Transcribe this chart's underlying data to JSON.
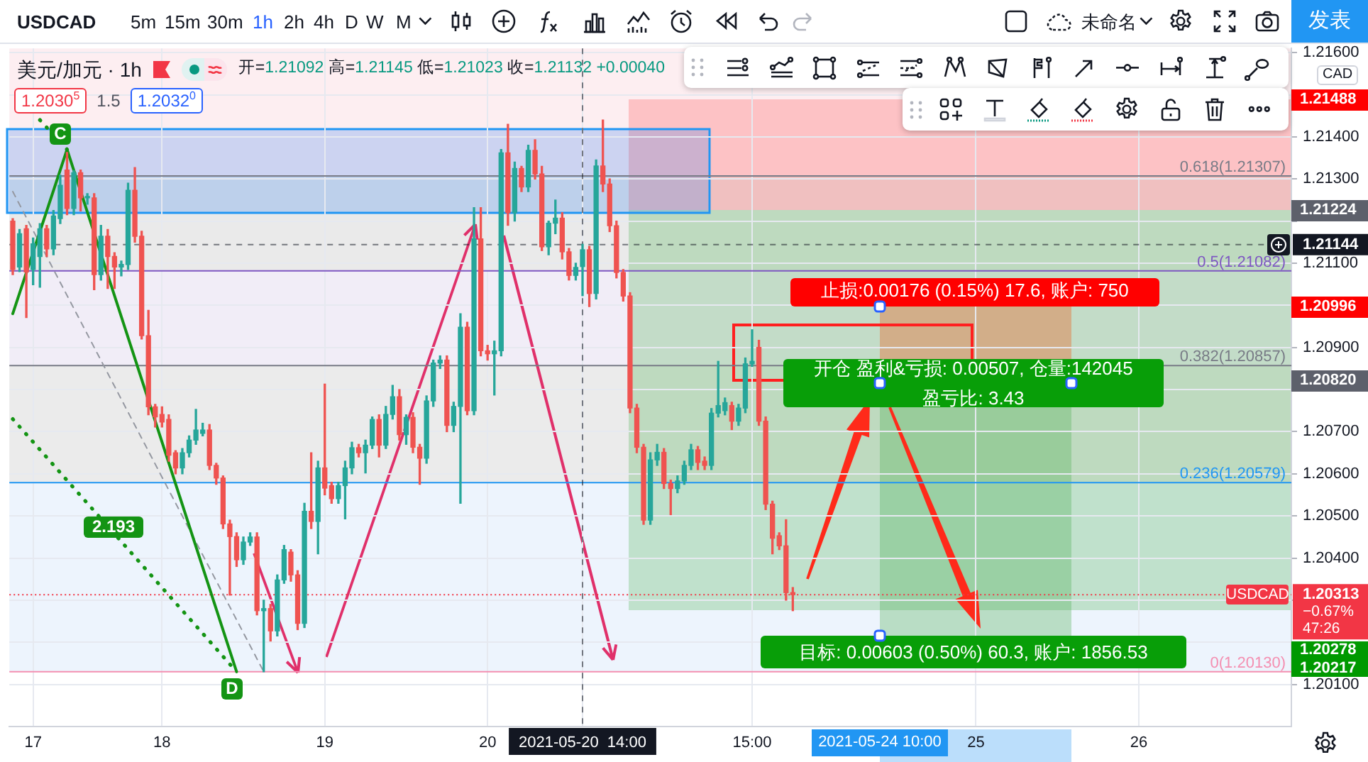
{
  "chart_data": {
    "type": "candlestick",
    "categories": [
      null,
      null,
      null,
      "17",
      null,
      null,
      null,
      null,
      null,
      null,
      null,
      null,
      null,
      null,
      null,
      null,
      null,
      null,
      null,
      null,
      null,
      null,
      "18",
      null,
      null,
      null,
      null,
      null,
      null,
      null,
      null,
      null,
      null,
      null,
      null,
      null,
      null,
      null,
      null,
      null,
      null,
      null,
      null,
      null,
      null,
      null,
      "19",
      null,
      null,
      null,
      null,
      null,
      null,
      null,
      null,
      null,
      null,
      null,
      null,
      null,
      null,
      null,
      null,
      null,
      null,
      null,
      null,
      null,
      null,
      null,
      "20",
      null,
      null,
      null,
      null,
      null,
      null,
      null,
      null,
      null,
      null,
      null,
      null,
      null,
      "2021-05-20  14:00",
      null,
      null,
      null,
      null,
      null,
      null,
      null,
      null,
      null,
      null,
      null,
      null,
      null,
      null,
      null,
      null,
      null,
      null,
      null,
      null,
      null,
      null,
      null,
      null,
      "15:00",
      null,
      null,
      null,
      null,
      null,
      null,
      null,
      null,
      null,
      null,
      null,
      null,
      null,
      null,
      null,
      null,
      null,
      null,
      null,
      null,
      null,
      null,
      null,
      null,
      null,
      null,
      null,
      null,
      null,
      null,
      null,
      null,
      "25",
      null,
      null,
      null,
      null,
      null,
      null,
      null,
      null,
      null,
      null,
      null,
      null,
      null,
      null,
      null,
      null,
      null,
      null,
      null,
      null,
      null,
      null,
      null,
      "26",
      null,
      null,
      null,
      null,
      null,
      null,
      null,
      null,
      null,
      null,
      null,
      null,
      null,
      null,
      null,
      null,
      null,
      null,
      null,
      null,
      null,
      null
    ],
    "ohlc": [
      [
        1.212,
        1.21206,
        1.21073,
        1.21085
      ],
      [
        1.21091,
        1.2118,
        1.2108,
        1.2117
      ],
      [
        1.21182,
        1.2119,
        1.20971,
        1.21079
      ],
      [
        1.21085,
        1.2116,
        1.21049,
        1.21146
      ],
      [
        1.21116,
        1.21194,
        1.21043,
        1.21182
      ],
      [
        1.21182,
        1.2119,
        1.21116,
        1.21134
      ],
      [
        1.21134,
        1.21225,
        1.2112,
        1.21212
      ],
      [
        1.21206,
        1.21309,
        1.21194,
        1.21285
      ],
      [
        1.21321,
        1.21363,
        1.21215,
        1.2123
      ],
      [
        1.2123,
        1.2132,
        1.21215,
        1.21315
      ],
      [
        1.21315,
        1.21321,
        1.21224,
        1.21255
      ],
      [
        1.21255,
        1.21265,
        1.2124,
        1.21258
      ],
      [
        1.21255,
        1.21265,
        1.21037,
        1.21073
      ],
      [
        1.21073,
        1.2119,
        1.2106,
        1.21164
      ],
      [
        1.21164,
        1.2118,
        1.2104,
        1.21116
      ],
      [
        1.21116,
        1.21125,
        1.2104,
        1.21091
      ],
      [
        1.21091,
        1.21105,
        1.2107,
        1.21097
      ],
      [
        1.21097,
        1.2129,
        1.21085,
        1.21273
      ],
      [
        1.21273,
        1.21327,
        1.2115,
        1.21164
      ],
      [
        1.21164,
        1.21176,
        1.2092,
        1.20928
      ],
      [
        1.20928,
        1.20988,
        1.2074,
        1.20759
      ],
      [
        1.20759,
        1.20765,
        1.20711,
        1.20735
      ],
      [
        1.20741,
        1.20759,
        1.20711,
        1.20723
      ],
      [
        1.20729,
        1.2074,
        1.2063,
        1.20644
      ],
      [
        1.2065,
        1.20655,
        1.206,
        1.20614
      ],
      [
        1.20614,
        1.2066,
        1.206,
        1.2065
      ],
      [
        1.2065,
        1.2069,
        1.2064,
        1.2068
      ],
      [
        1.2068,
        1.20753,
        1.2067,
        1.20704
      ],
      [
        1.20696,
        1.2072,
        1.2069,
        1.20704
      ],
      [
        1.20704,
        1.20717,
        1.2061,
        1.2062
      ],
      [
        1.2062,
        1.20625,
        1.20575,
        1.2059
      ],
      [
        1.2059,
        1.20595,
        1.2047,
        1.20481
      ],
      [
        1.20481,
        1.2049,
        1.20312,
        1.20451
      ],
      [
        1.20451,
        1.2046,
        1.2038,
        1.20396
      ],
      [
        1.20396,
        1.2045,
        1.20385,
        1.20438
      ],
      [
        1.20438,
        1.2046,
        1.2043,
        1.2045
      ],
      [
        1.2045,
        1.2046,
        1.20265,
        1.20275
      ],
      [
        1.20275,
        1.203,
        1.2013,
        1.2028
      ],
      [
        1.2028,
        1.2029,
        1.20203,
        1.20227
      ],
      [
        1.20227,
        1.2036,
        1.20215,
        1.20348
      ],
      [
        1.20348,
        1.2043,
        1.2034,
        1.2042
      ],
      [
        1.20414,
        1.2042,
        1.20345,
        1.2036
      ],
      [
        1.2036,
        1.2037,
        1.2023,
        1.20245
      ],
      [
        1.20245,
        1.2053,
        1.20235,
        1.20511
      ],
      [
        1.20511,
        1.2065,
        1.2047,
        1.20487
      ],
      [
        1.20487,
        1.2063,
        1.2041,
        1.20614
      ],
      [
        1.20614,
        1.20813,
        1.2055,
        1.20566
      ],
      [
        1.20572,
        1.2058,
        1.2053,
        1.20541
      ],
      [
        1.20541,
        1.2058,
        1.2053,
        1.20572
      ],
      [
        1.20572,
        1.2063,
        1.20493,
        1.20614
      ],
      [
        1.20614,
        1.20675,
        1.206,
        1.20662
      ],
      [
        1.20662,
        1.2067,
        1.2064,
        1.2065
      ],
      [
        1.2065,
        1.2068,
        1.20602,
        1.20668
      ],
      [
        1.20668,
        1.20735,
        1.2066,
        1.20729
      ],
      [
        1.20729,
        1.2074,
        1.2064,
        1.20668
      ],
      [
        1.20668,
        1.2076,
        1.2066,
        1.20741
      ],
      [
        1.20741,
        1.2081,
        1.2073,
        1.20783
      ],
      [
        1.20783,
        1.208,
        1.2068,
        1.20693
      ],
      [
        1.20693,
        1.2074,
        1.2067,
        1.20734
      ],
      [
        1.20734,
        1.20745,
        1.2065,
        1.20663
      ],
      [
        1.20663,
        1.2067,
        1.20575,
        1.20637
      ],
      [
        1.20637,
        1.20785,
        1.20625,
        1.20773
      ],
      [
        1.20773,
        1.2087,
        1.2076,
        1.20863
      ],
      [
        1.20863,
        1.2088,
        1.2085,
        1.2087
      ],
      [
        1.2087,
        1.2088,
        1.207,
        1.20715
      ],
      [
        1.20715,
        1.2077,
        1.207,
        1.2076
      ],
      [
        1.2076,
        1.2098,
        1.2053,
        1.20948
      ],
      [
        1.20948,
        1.2096,
        1.2074,
        1.2075
      ],
      [
        1.2075,
        1.21232,
        1.2074,
        1.21158
      ],
      [
        1.21158,
        1.21232,
        1.2088,
        1.20892
      ],
      [
        1.20892,
        1.20905,
        1.2087,
        1.20885
      ],
      [
        1.20885,
        1.20915,
        1.20787,
        1.20892
      ],
      [
        1.20892,
        1.2137,
        1.2088,
        1.21362
      ],
      [
        1.21362,
        1.2143,
        1.2119,
        1.2122
      ],
      [
        1.2122,
        1.2134,
        1.212,
        1.21325
      ],
      [
        1.21325,
        1.2133,
        1.2127,
        1.21281
      ],
      [
        1.21281,
        1.2138,
        1.2127,
        1.21368
      ],
      [
        1.21368,
        1.21393,
        1.213,
        1.21312
      ],
      [
        1.21312,
        1.2133,
        1.2113,
        1.21139
      ],
      [
        1.21139,
        1.212,
        1.2112,
        1.21195
      ],
      [
        1.21195,
        1.2125,
        1.2117,
        1.21207
      ],
      [
        1.21207,
        1.2122,
        1.2111,
        1.21127
      ],
      [
        1.21127,
        1.21135,
        1.2106,
        1.21071
      ],
      [
        1.21071,
        1.211,
        1.2106,
        1.2109
      ],
      [
        1.21092,
        1.21145,
        1.21023,
        1.21132
      ],
      [
        1.21132,
        1.2114,
        1.20997,
        1.21028
      ],
      [
        1.21028,
        1.21345,
        1.21015,
        1.21331
      ],
      [
        1.21331,
        1.2144,
        1.2127,
        1.21288
      ],
      [
        1.21288,
        1.213,
        1.21175,
        1.21189
      ],
      [
        1.21189,
        1.212,
        1.21065,
        1.21078
      ],
      [
        1.21078,
        1.21085,
        1.2101,
        1.21022
      ],
      [
        1.21022,
        1.2103,
        1.20745,
        1.20756
      ],
      [
        1.20756,
        1.20765,
        1.2065,
        1.20663
      ],
      [
        1.20663,
        1.2067,
        1.2048,
        1.2049
      ],
      [
        1.2049,
        1.2065,
        1.2048,
        1.20633
      ],
      [
        1.20633,
        1.2067,
        1.2062,
        1.20651
      ],
      [
        1.20651,
        1.2066,
        1.20565,
        1.20577
      ],
      [
        1.20577,
        1.20585,
        1.20503,
        1.20565
      ],
      [
        1.20565,
        1.20595,
        1.20555,
        1.20583
      ],
      [
        1.20583,
        1.2063,
        1.20575,
        1.2062
      ],
      [
        1.2062,
        1.2067,
        1.2061,
        1.20657
      ],
      [
        1.20657,
        1.20665,
        1.2061,
        1.20627
      ],
      [
        1.2063,
        1.2064,
        1.2061,
        1.2062
      ],
      [
        1.2062,
        1.20755,
        1.2061,
        1.20744
      ],
      [
        1.20744,
        1.20867,
        1.20735,
        1.20762
      ],
      [
        1.2075,
        1.2078,
        1.2074,
        1.20769
      ],
      [
        1.20762,
        1.2077,
        1.20705,
        1.20725
      ],
      [
        1.20725,
        1.20765,
        1.20715,
        1.20756
      ],
      [
        1.20756,
        1.20875,
        1.20745,
        1.20861
      ],
      [
        1.20861,
        1.20942,
        1.20855,
        1.20867
      ],
      [
        1.209,
        1.20917,
        1.20715,
        1.20725
      ],
      [
        1.20725,
        1.20735,
        1.20515,
        1.20528
      ],
      [
        1.20528,
        1.20535,
        1.2041,
        1.20447
      ],
      [
        1.20453,
        1.2046,
        1.2042,
        1.20429
      ],
      [
        1.20429,
        1.20491,
        1.203,
        1.20318
      ],
      [
        1.20318,
        1.2033,
        1.20275,
        1.20313
      ],
      null,
      null,
      null,
      null,
      null,
      null,
      null,
      null,
      null,
      null,
      null,
      null,
      null,
      null,
      null,
      null,
      null,
      null,
      null,
      null,
      null,
      null,
      null,
      null,
      null,
      null,
      null,
      null,
      null,
      null,
      null,
      null,
      null,
      null,
      null,
      null,
      null,
      null,
      null,
      null,
      null,
      null,
      null,
      null,
      null,
      null,
      null,
      null,
      null,
      null,
      null,
      null,
      null,
      null,
      null,
      null,
      null,
      null,
      null,
      null,
      null,
      null,
      null,
      null,
      null,
      null,
      null,
      null,
      null,
      null,
      null,
      null,
      null
    ],
    "ylim": [
      1.2,
      1.2161
    ],
    "yticks": [
      {
        "value": 1.201,
        "label": "1.20100"
      },
      {
        "value": 1.202,
        "label": null
      },
      {
        "value": 1.203,
        "label": null
      },
      {
        "value": 1.204,
        "label": "1.20400"
      },
      {
        "value": 1.205,
        "label": "1.20500"
      },
      {
        "value": 1.206,
        "label": "1.20600"
      },
      {
        "value": 1.207,
        "label": "1.20700"
      },
      {
        "value": 1.208,
        "label": null
      },
      {
        "value": 1.209,
        "label": "1.20900"
      },
      {
        "value": 1.21,
        "label": null
      },
      {
        "value": 1.211,
        "label": "1.21100"
      },
      {
        "value": 1.212,
        "label": null
      },
      {
        "value": 1.213,
        "label": "1.21300"
      },
      {
        "value": 1.214,
        "label": "1.21400"
      },
      {
        "value": 1.215,
        "label": null
      },
      {
        "value": 1.216,
        "label": "1.21600"
      }
    ],
    "grid": true,
    "series": [
      {
        "type": "line",
        "color": "#149414",
        "line_style": "solid",
        "values": [
          1.2098,
          null,
          null,
          null,
          null,
          null,
          null,
          null,
          1.2137,
          null,
          null,
          null,
          null,
          null,
          null,
          null,
          null,
          null,
          null,
          null,
          null,
          null,
          null,
          null,
          null,
          null,
          null,
          null,
          null,
          null,
          null,
          null,
          null,
          1.2013,
          null,
          null,
          null,
          null,
          null,
          null,
          null,
          null,
          null,
          null,
          null,
          null,
          null,
          null,
          null,
          null,
          null,
          null,
          null,
          null,
          null,
          null,
          null,
          null,
          null,
          null,
          null,
          null,
          null,
          null,
          null,
          null,
          null,
          null,
          null,
          null,
          null,
          null,
          null,
          null,
          null,
          null,
          null,
          null,
          null,
          null,
          null,
          null,
          null,
          null,
          null,
          null,
          null,
          null,
          null,
          null,
          null,
          null,
          null,
          null,
          null,
          null,
          null,
          null,
          null,
          null,
          null,
          null,
          null,
          null,
          null,
          null,
          null,
          null,
          null,
          null,
          null,
          null,
          null,
          null,
          null,
          null,
          null,
          null,
          null,
          null,
          null,
          null,
          null,
          null,
          null,
          null,
          null,
          null,
          null,
          null,
          null,
          null,
          null,
          null,
          null,
          null,
          null,
          null,
          null,
          null,
          null,
          null,
          null,
          null,
          null,
          null,
          null,
          null,
          null,
          null,
          null,
          null,
          null,
          null,
          null,
          null,
          null,
          null,
          null,
          null,
          null,
          null,
          null,
          null,
          null,
          null,
          null,
          null,
          null,
          null,
          null,
          null,
          null,
          null,
          null,
          null,
          null,
          null,
          null,
          null,
          null,
          null,
          null,
          null,
          null,
          null,
          null,
          null,
          null
        ]
      },
      {
        "type": "line",
        "color": "#149414",
        "line_style": "dotted",
        "values": [
          null,
          null,
          null,
          null,
          1.2144,
          null,
          null,
          null,
          1.2137,
          null,
          null,
          null,
          null,
          null,
          null,
          null,
          null,
          null,
          null,
          null,
          null,
          null,
          null,
          null,
          null,
          null,
          null,
          null,
          null,
          null,
          null,
          null,
          null,
          null,
          null,
          null,
          null,
          null,
          null,
          null,
          null,
          null,
          null,
          null,
          null,
          null,
          null,
          null,
          null,
          null,
          null,
          null,
          null,
          null,
          null,
          null,
          null,
          null,
          null,
          null,
          null,
          null,
          null,
          null,
          null,
          null,
          null,
          null,
          null,
          null,
          null,
          null,
          null,
          null,
          null,
          null,
          null,
          null,
          null,
          null,
          null,
          null,
          null,
          null,
          null,
          null,
          null,
          null,
          null,
          null,
          null,
          null,
          null,
          null,
          null,
          null,
          null,
          null,
          null,
          null,
          null,
          null,
          null,
          null,
          null,
          null,
          null,
          null,
          null,
          null,
          null,
          null,
          null,
          null,
          null,
          null,
          null,
          null,
          null,
          null,
          null,
          null,
          null,
          null,
          null,
          null,
          null,
          null,
          null,
          null,
          null,
          null,
          null,
          null,
          null,
          null,
          null,
          null,
          null,
          null,
          null,
          null,
          null,
          null,
          null,
          null,
          null,
          null,
          null,
          null,
          null,
          null,
          null,
          null,
          null,
          null,
          null,
          null,
          null,
          null,
          null,
          null,
          null,
          null,
          null,
          null,
          null,
          null,
          null,
          null,
          null,
          null,
          null,
          null,
          null,
          null,
          null,
          null,
          null,
          null,
          null,
          null,
          null,
          null,
          null,
          null,
          null,
          null,
          null
        ]
      },
      {
        "type": "line",
        "color": "#149414",
        "line_style": "dotted",
        "values": [
          1.2073,
          null,
          null,
          null,
          null,
          null,
          null,
          null,
          null,
          null,
          null,
          null,
          null,
          null,
          null,
          null,
          null,
          null,
          null,
          null,
          null,
          null,
          null,
          null,
          null,
          null,
          null,
          null,
          null,
          null,
          null,
          null,
          null,
          1.2013,
          null,
          null,
          null,
          null,
          null,
          null,
          null,
          null,
          null,
          null,
          null,
          null,
          null,
          null,
          null,
          null,
          null,
          null,
          null,
          null,
          null,
          null,
          null,
          null,
          null,
          null,
          null,
          null,
          null,
          null,
          null,
          null,
          null,
          null,
          null,
          null,
          null,
          null,
          null,
          null,
          null,
          null,
          null,
          null,
          null,
          null,
          null,
          null,
          null,
          null,
          null,
          null,
          null,
          null,
          null,
          null,
          null,
          null,
          null,
          null,
          null,
          null,
          null,
          null,
          null,
          null,
          null,
          null,
          null,
          null,
          null,
          null,
          null,
          null,
          null,
          null,
          null,
          null,
          null,
          null,
          null,
          null,
          null,
          null,
          null,
          null,
          null,
          null,
          null,
          null,
          null,
          null,
          null,
          null,
          null,
          null,
          null,
          null,
          null,
          null,
          null,
          null,
          null,
          null,
          null,
          null,
          null,
          null,
          null,
          null,
          null,
          null,
          null,
          null,
          null,
          null,
          null,
          null,
          null,
          null,
          null,
          null,
          null,
          null,
          null,
          null,
          null,
          null,
          null,
          null,
          null,
          null,
          null,
          null,
          null,
          null,
          null,
          null,
          null,
          null,
          null,
          null,
          null,
          null,
          null,
          null,
          null,
          null,
          null,
          null,
          null,
          null,
          null,
          null,
          null
        ]
      },
      {
        "type": "line",
        "color": "#9598a1",
        "line_style": "dashed",
        "values": [
          1.2127,
          null,
          null,
          null,
          null,
          null,
          null,
          null,
          null,
          null,
          null,
          null,
          null,
          null,
          null,
          null,
          null,
          null,
          null,
          null,
          null,
          null,
          null,
          null,
          null,
          null,
          null,
          null,
          null,
          null,
          null,
          null,
          null,
          null,
          null,
          null,
          null,
          1.2013,
          null,
          null,
          null,
          null,
          null,
          null,
          null,
          null,
          null,
          null,
          null,
          null,
          null,
          null,
          null,
          null,
          null,
          null,
          null,
          null,
          null,
          null,
          null,
          null,
          null,
          null,
          null,
          null,
          null,
          null,
          null,
          null,
          null,
          null,
          null,
          null,
          null,
          null,
          null,
          null,
          null,
          null,
          null,
          null,
          null,
          null,
          null,
          null,
          null,
          null,
          null,
          null,
          null,
          null,
          null,
          null,
          null,
          null,
          null,
          null,
          null,
          null,
          null,
          null,
          null,
          null,
          null,
          null,
          null,
          null,
          null,
          null,
          null,
          null,
          null,
          null,
          null,
          null,
          null,
          null,
          null,
          null,
          null,
          null,
          null,
          null,
          null,
          null,
          null,
          null,
          null,
          null,
          null,
          null,
          null,
          null,
          null,
          null,
          null,
          null,
          null,
          null,
          null,
          null,
          null,
          null,
          null,
          null,
          null,
          null,
          null,
          null,
          null,
          null,
          null,
          null,
          null,
          null,
          null,
          null,
          null,
          null,
          null,
          null,
          null,
          null,
          null,
          null,
          null,
          null,
          null,
          null,
          null,
          null,
          null,
          null,
          null,
          null,
          null,
          null,
          null,
          null,
          null,
          null,
          null,
          null,
          null,
          null,
          null,
          null,
          null
        ]
      }
    ],
    "bands": [
      {
        "axis": "y",
        "from": 1.2013,
        "to": 1.20579,
        "color": "#edf4fd"
      },
      {
        "axis": "y",
        "from": 1.20579,
        "to": 1.20857,
        "color": "#ebebeb"
      },
      {
        "axis": "y",
        "from": 1.20857,
        "to": 1.21082,
        "color": "#f1edf7"
      },
      {
        "axis": "y",
        "from": 1.21082,
        "to": 1.21307,
        "color": "#eaeaea"
      },
      {
        "axis": "y",
        "from": 1.21307,
        "to": 1.2161,
        "color": "#fdeef1"
      }
    ],
    "ref_lines": [
      {
        "axis": "y",
        "value": 1.21307,
        "label": "0.618(1.21307)",
        "color": "#787b86"
      },
      {
        "axis": "y",
        "value": 1.21082,
        "label": "0.5(1.21082)",
        "color": "#7e57c2"
      },
      {
        "axis": "y",
        "value": 1.20857,
        "label": "0.382(1.20857)",
        "color": "#787b86"
      },
      {
        "axis": "y",
        "value": 1.20579,
        "label": "0.236(1.20579)",
        "color": "#2196f3"
      },
      {
        "axis": "y",
        "value": 1.2013,
        "label": "0(1.20130)",
        "color": "#f48fb1"
      },
      {
        "axis": "y",
        "value": 1.21144,
        "label": "1.21144",
        "color": "#131722",
        "line_style": "dashed"
      },
      {
        "axis": "y",
        "value": 1.20313,
        "label": "1.20313\n−0.67%\n47:26",
        "color": "#f23645",
        "line_style": "dotted"
      },
      {
        "axis": "x",
        "value": "2021-05-20  14:00",
        "color": "#131722",
        "line_style": "dashed"
      }
    ],
    "annotations": [
      "USDCAD",
      "5m",
      "15m",
      "30m",
      "1h",
      "2h",
      "4h",
      "D",
      "W",
      "M",
      "未命名",
      "发表",
      "美元/加元 · 1h",
      "开=1.21092 高=1.21145 低=1.21023 收=1.21132 +0.00040",
      "1.2030$^{5}$",
      "1.5",
      "1.2032$^{0}$",
      "CAD",
      "止损:0.00176 (0.15%) 17.6, 账户: 750",
      "开仓 盈利&亏损: 0.00507, 仓量:142045",
      "盈亏比: 3.43",
      "目标: 0.00603 (0.50%) 60.3, 账户: 1856.53",
      "USDCAD",
      "C",
      "D",
      "2.193",
      "1.21488",
      "1.21224",
      "1.20996",
      "1.20820",
      "1.20278",
      "1.20217",
      "2021-05-24  10:00"
    ]
  }
}
